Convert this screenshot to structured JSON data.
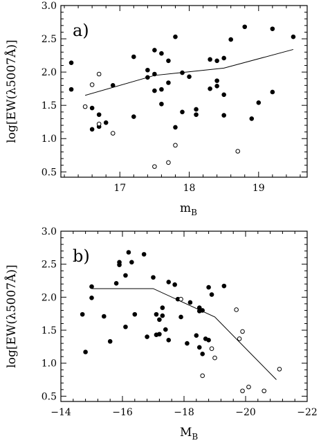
{
  "chart_data": [
    {
      "type": "scatter",
      "panel_label": "a)",
      "xlabel_main": "m",
      "xlabel_sub": "B",
      "ylabel": "log[EW(λ5007Å)]",
      "xlim": [
        16.15,
        19.7
      ],
      "ylim": [
        0.42,
        3.0
      ],
      "xticks": [
        17,
        18,
        19
      ],
      "xtick_labels": [
        "17",
        "18",
        "19"
      ],
      "yticks": [
        0.5,
        1.0,
        1.5,
        2.0,
        2.5,
        3.0
      ],
      "ytick_labels": [
        "0.5",
        "1.0",
        "1.5",
        "2.0",
        "2.5",
        "3.0"
      ],
      "filled_points": [
        [
          16.3,
          2.14
        ],
        [
          16.3,
          1.74
        ],
        [
          16.6,
          1.46
        ],
        [
          16.6,
          1.14
        ],
        [
          16.7,
          1.36
        ],
        [
          16.7,
          1.18
        ],
        [
          16.8,
          1.24
        ],
        [
          16.9,
          1.8
        ],
        [
          17.2,
          2.23
        ],
        [
          17.2,
          1.33
        ],
        [
          17.4,
          2.03
        ],
        [
          17.4,
          1.92
        ],
        [
          17.5,
          2.33
        ],
        [
          17.5,
          1.97
        ],
        [
          17.5,
          1.72
        ],
        [
          17.6,
          2.28
        ],
        [
          17.6,
          1.74
        ],
        [
          17.6,
          1.52
        ],
        [
          17.7,
          2.17
        ],
        [
          17.7,
          1.84
        ],
        [
          17.8,
          2.53
        ],
        [
          17.8,
          1.17
        ],
        [
          17.9,
          1.99
        ],
        [
          17.9,
          1.4
        ],
        [
          18.0,
          1.93
        ],
        [
          18.1,
          1.44
        ],
        [
          18.1,
          1.36
        ],
        [
          18.3,
          2.19
        ],
        [
          18.3,
          1.75
        ],
        [
          18.4,
          2.17
        ],
        [
          18.4,
          1.87
        ],
        [
          18.4,
          1.79
        ],
        [
          18.5,
          2.21
        ],
        [
          18.5,
          1.66
        ],
        [
          18.5,
          1.35
        ],
        [
          18.6,
          2.49
        ],
        [
          18.8,
          2.68
        ],
        [
          18.9,
          1.3
        ],
        [
          19.0,
          1.54
        ],
        [
          19.2,
          2.65
        ],
        [
          19.2,
          1.7
        ],
        [
          19.5,
          2.53
        ]
      ],
      "open_points": [
        [
          16.5,
          1.48
        ],
        [
          16.6,
          1.81
        ],
        [
          16.7,
          1.97
        ],
        [
          16.7,
          1.22
        ],
        [
          16.9,
          1.08
        ],
        [
          17.5,
          0.58
        ],
        [
          17.7,
          0.64
        ],
        [
          17.8,
          0.9
        ],
        [
          18.7,
          0.81
        ]
      ],
      "trend_line": [
        [
          16.5,
          1.65
        ],
        [
          17.5,
          1.95
        ],
        [
          18.5,
          2.06
        ],
        [
          19.5,
          2.34
        ]
      ]
    },
    {
      "type": "scatter",
      "panel_label": "b)",
      "xlabel_main": "M",
      "xlabel_sub": "B",
      "ylabel": "log[EW(λ5007Å)]",
      "xlim": [
        -14,
        -22
      ],
      "ylim": [
        0.42,
        3.0
      ],
      "xticks": [
        -14,
        -16,
        -18,
        -20,
        -22
      ],
      "xtick_labels": [
        "−14",
        "−16",
        "−18",
        "−20",
        "−22"
      ],
      "yticks": [
        0.5,
        1.0,
        1.5,
        2.0,
        2.5,
        3.0
      ],
      "ytick_labels": [
        "0.5",
        "1.0",
        "1.5",
        "2.0",
        "2.5",
        "3.0"
      ],
      "filled_points": [
        [
          -14.7,
          1.74
        ],
        [
          -14.8,
          1.17
        ],
        [
          -15.0,
          2.16
        ],
        [
          -15.0,
          1.99
        ],
        [
          -15.4,
          1.71
        ],
        [
          -15.6,
          1.33
        ],
        [
          -15.8,
          2.21
        ],
        [
          -15.9,
          2.53
        ],
        [
          -15.9,
          2.49
        ],
        [
          -16.1,
          1.55
        ],
        [
          -16.1,
          2.33
        ],
        [
          -16.2,
          2.68
        ],
        [
          -16.3,
          2.53
        ],
        [
          -16.4,
          1.74
        ],
        [
          -16.7,
          2.65
        ],
        [
          -16.8,
          1.4
        ],
        [
          -17.1,
          1.43
        ],
        [
          -17.1,
          1.74
        ],
        [
          -17.2,
          1.66
        ],
        [
          -17.2,
          1.44
        ],
        [
          -17.0,
          2.3
        ],
        [
          -17.3,
          1.84
        ],
        [
          -17.3,
          1.72
        ],
        [
          -17.4,
          1.51
        ],
        [
          -17.5,
          1.35
        ],
        [
          -17.5,
          2.23
        ],
        [
          -17.7,
          2.19
        ],
        [
          -17.8,
          1.97
        ],
        [
          -17.9,
          1.7
        ],
        [
          -18.1,
          1.3
        ],
        [
          -18.2,
          1.92
        ],
        [
          -18.4,
          1.42
        ],
        [
          -18.5,
          1.84
        ],
        [
          -18.5,
          1.79
        ],
        [
          -18.5,
          1.24
        ],
        [
          -18.6,
          1.14
        ],
        [
          -18.6,
          1.8
        ],
        [
          -18.7,
          1.37
        ],
        [
          -18.8,
          2.15
        ],
        [
          -18.8,
          1.35
        ],
        [
          -18.9,
          2.04
        ],
        [
          -19.3,
          2.17
        ]
      ],
      "open_points": [
        [
          -17.9,
          1.97
        ],
        [
          -18.6,
          0.81
        ],
        [
          -18.9,
          1.22
        ],
        [
          -19.0,
          1.08
        ],
        [
          -19.7,
          1.81
        ],
        [
          -19.8,
          1.37
        ],
        [
          -19.9,
          1.48
        ],
        [
          -19.9,
          0.58
        ],
        [
          -20.1,
          0.64
        ],
        [
          -20.6,
          0.58
        ],
        [
          -21.1,
          0.91
        ]
      ],
      "trend_line": [
        [
          -15.0,
          2.13
        ],
        [
          -17.0,
          2.13
        ],
        [
          -19.0,
          1.7
        ],
        [
          -21.0,
          0.75
        ]
      ]
    }
  ]
}
